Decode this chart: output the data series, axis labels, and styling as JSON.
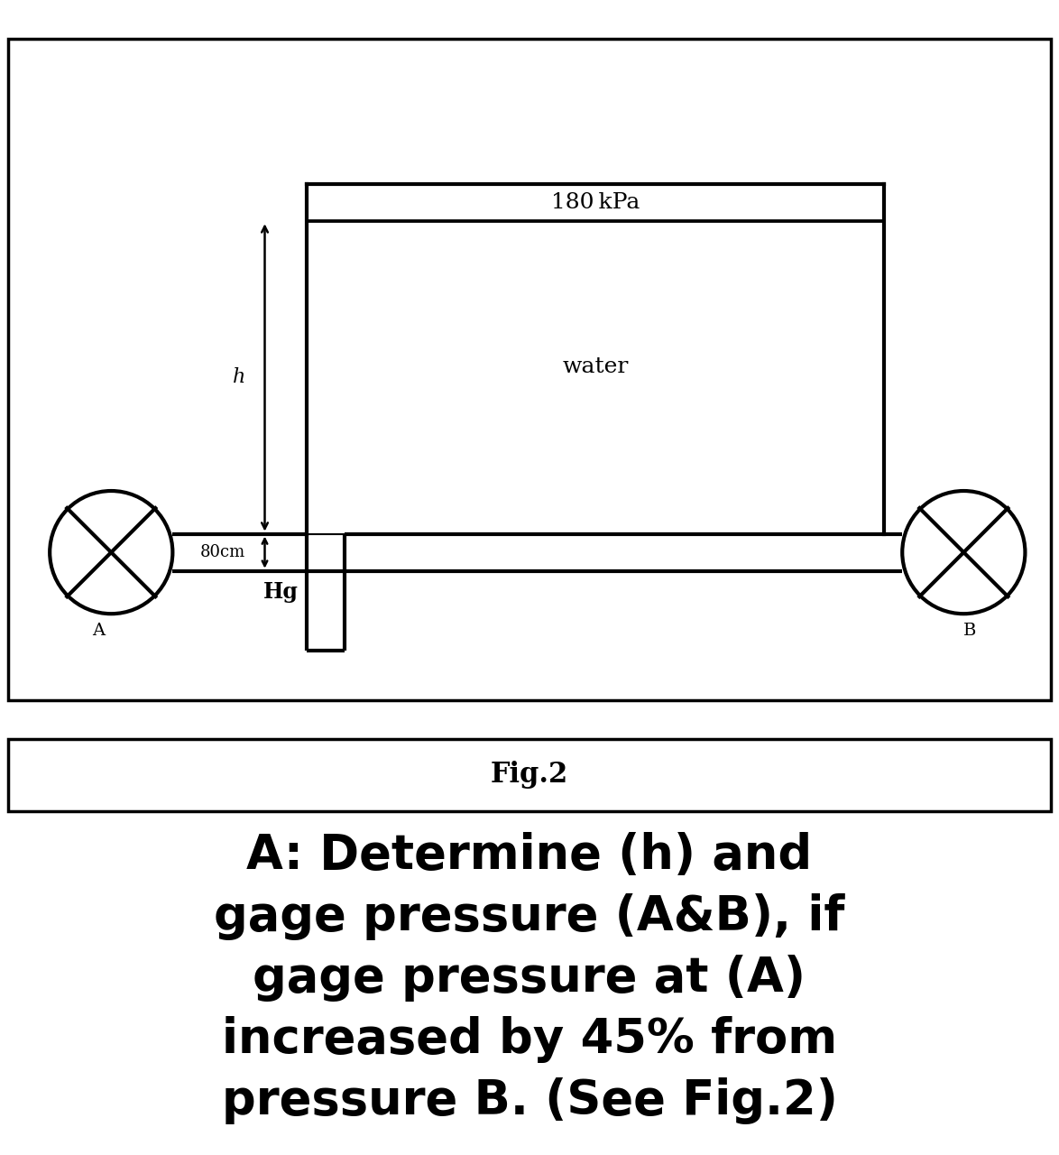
{
  "fig_width": 11.74,
  "fig_height": 12.8,
  "bg_color": "#ffffff",
  "line_color": "#000000",
  "line_width": 3.0,
  "diagram_title": "Fig.2",
  "pressure_label": "180 kPa",
  "fluid_label": "water",
  "hg_label": "Hg",
  "h_label": "h",
  "dim_label": "80cm",
  "label_A": "A",
  "label_B": "B",
  "problem_text_lines": [
    "A: Determine (h) and",
    "gage pressure (A&B), if",
    "gage pressure at (A)",
    "increased by 45% from",
    "pressure B. (See Fig.2)"
  ],
  "problem_fontsize": 38,
  "fig2_fontsize": 22
}
